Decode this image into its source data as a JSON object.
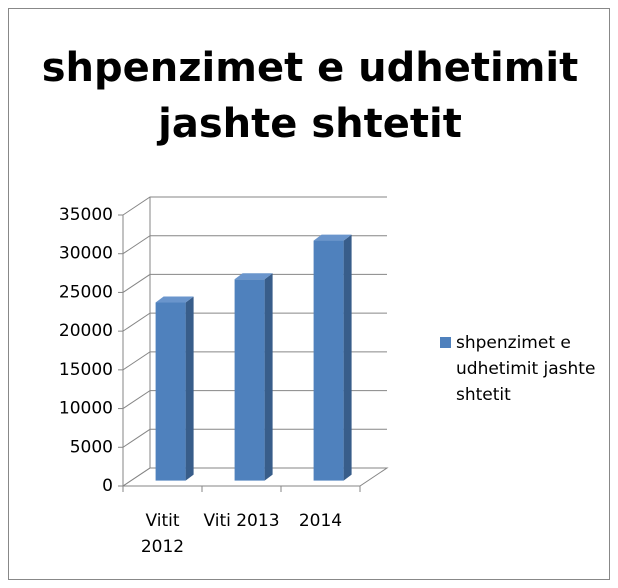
{
  "chart_data": {
    "type": "bar3d",
    "title": "shpenzimet e udhetimit jashte shtetit",
    "categories": [
      "Vitit 2012",
      "Viti 2013",
      "2014"
    ],
    "series": [
      {
        "name": "shpenzimet e udhetimit jashte shtetit",
        "color": "#4f81bd",
        "values": [
          23000,
          26000,
          31000
        ]
      }
    ],
    "ylim": [
      0,
      35000
    ],
    "yticks": [
      0,
      5000,
      10000,
      15000,
      20000,
      25000,
      30000,
      35000
    ],
    "grid": true,
    "legend": "right"
  }
}
